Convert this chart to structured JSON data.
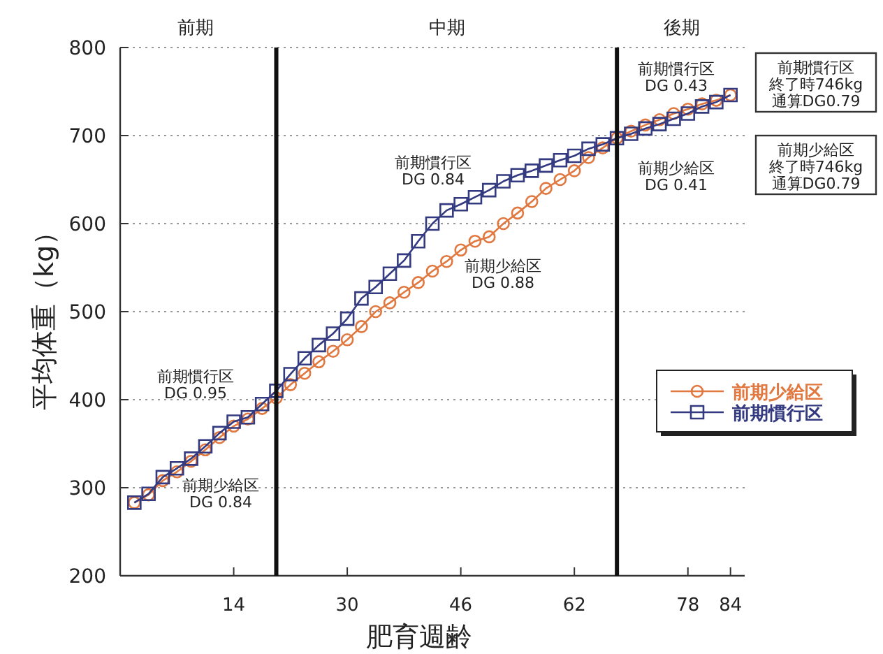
{
  "chart_data": {
    "type": "line",
    "xlabel": "肥育週齢",
    "ylabel": "平均体重（kg）",
    "x": [
      0,
      2,
      4,
      6,
      8,
      10,
      12,
      14,
      16,
      18,
      20,
      22,
      24,
      26,
      28,
      30,
      32,
      34,
      36,
      38,
      40,
      42,
      44,
      46,
      48,
      50,
      52,
      54,
      56,
      58,
      60,
      62,
      64,
      66,
      68,
      70,
      72,
      74,
      76,
      78,
      80,
      82,
      84
    ],
    "series": [
      {
        "name": "前期少給区",
        "color": "#e07840",
        "marker": "circle",
        "values": [
          283,
          292,
          308,
          318,
          330,
          343,
          357,
          370,
          378,
          390,
          402,
          417,
          430,
          443,
          455,
          468,
          483,
          500,
          510,
          522,
          533,
          546,
          557,
          570,
          580,
          585,
          600,
          612,
          625,
          640,
          650,
          660,
          675,
          686,
          697,
          705,
          712,
          718,
          725,
          730,
          736,
          740,
          746
        ]
      },
      {
        "name": "前期慣行区",
        "color": "#333a80",
        "marker": "square",
        "values": [
          283,
          293,
          312,
          322,
          333,
          347,
          362,
          375,
          380,
          395,
          410,
          429,
          447,
          462,
          475,
          492,
          515,
          528,
          543,
          558,
          580,
          600,
          615,
          622,
          630,
          638,
          648,
          655,
          660,
          666,
          672,
          677,
          685,
          690,
          697,
          702,
          708,
          713,
          719,
          725,
          733,
          738,
          746
        ]
      }
    ],
    "xlim": [
      -2,
      86
    ],
    "xticks": [
      14,
      30,
      46,
      62,
      78,
      84
    ],
    "ylim": [
      200,
      800
    ],
    "yticks": [
      200,
      300,
      400,
      500,
      600,
      700,
      800
    ],
    "grid": "y",
    "legend": "right",
    "line_style": "solid",
    "ref_lines": [
      {
        "axis": "x",
        "value": 20,
        "color": "#111111"
      },
      {
        "axis": "x",
        "value": 68,
        "color": "#111111"
      }
    ],
    "annotations": [
      "前期",
      "中期",
      "後期",
      "前期慣行区\nDG 0.95",
      "前期少給区\nDG 0.84",
      "前期慣行区\nDG 0.84",
      "前期少給区\nDG 0.88",
      "前期慣行区\nDG 0.43",
      "前期少給区\nDG 0.41",
      "前期慣行区",
      "終了時746kg",
      "通算DG0.79",
      "前期少給区",
      "終了時746kg",
      "通算DG0.79"
    ]
  }
}
